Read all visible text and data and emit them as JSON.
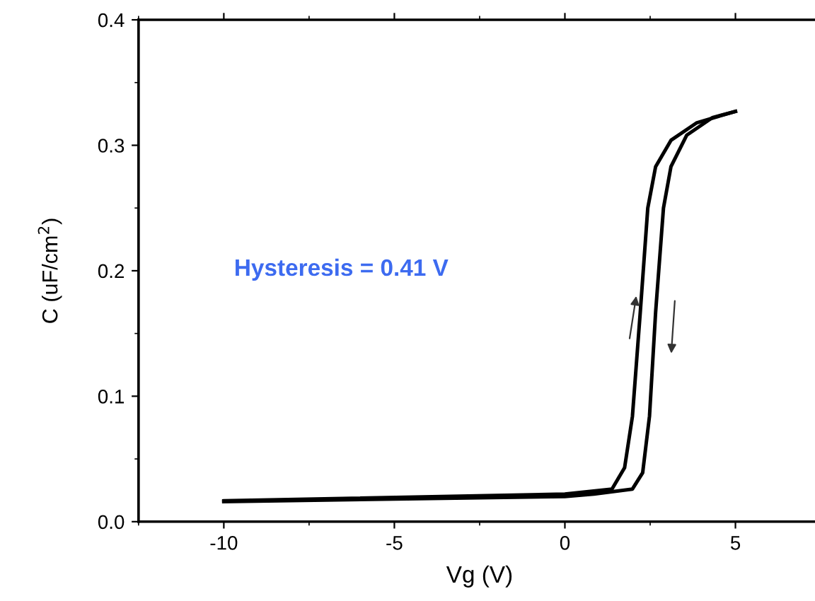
{
  "chart_data": {
    "type": "line",
    "xlabel": "Vg (V)",
    "ylabel": "C (uF/cm$^{2}$)",
    "series": [
      {
        "color": "#000000",
        "x": [
          -10,
          0,
          1.38,
          1.75,
          1.98,
          2.21,
          2.43,
          2.66,
          3.11,
          3.87,
          5
        ],
        "values": [
          0.0166,
          0.022,
          0.026,
          0.043,
          0.084,
          0.167,
          0.25,
          0.283,
          0.304,
          0.318,
          0.327
        ]
      },
      {
        "color": "#000000",
        "x": [
          5,
          4.32,
          3.57,
          3.11,
          2.89,
          2.66,
          2.48,
          2.28,
          1.98,
          0.85,
          0,
          -10
        ],
        "values": [
          0.327,
          0.322,
          0.308,
          0.283,
          0.25,
          0.167,
          0.084,
          0.039,
          0.026,
          0.022,
          0.02,
          0.016
        ]
      }
    ],
    "annotations": [
      "Hysteresis = 0.41 V"
    ],
    "xlim": [
      -12.5,
      7.5
    ],
    "ylim": [
      0,
      0.4
    ],
    "xticks": [
      {
        "value": -10,
        "label": "-10"
      },
      {
        "value": -5,
        "label": "-5"
      },
      0,
      5
    ],
    "yticks": [
      {
        "value": 0,
        "label": "0.0"
      },
      0.1,
      0.2,
      0.3,
      0.4
    ],
    "grid": false,
    "legend": false,
    "marker": "none",
    "line_style": "solid"
  }
}
